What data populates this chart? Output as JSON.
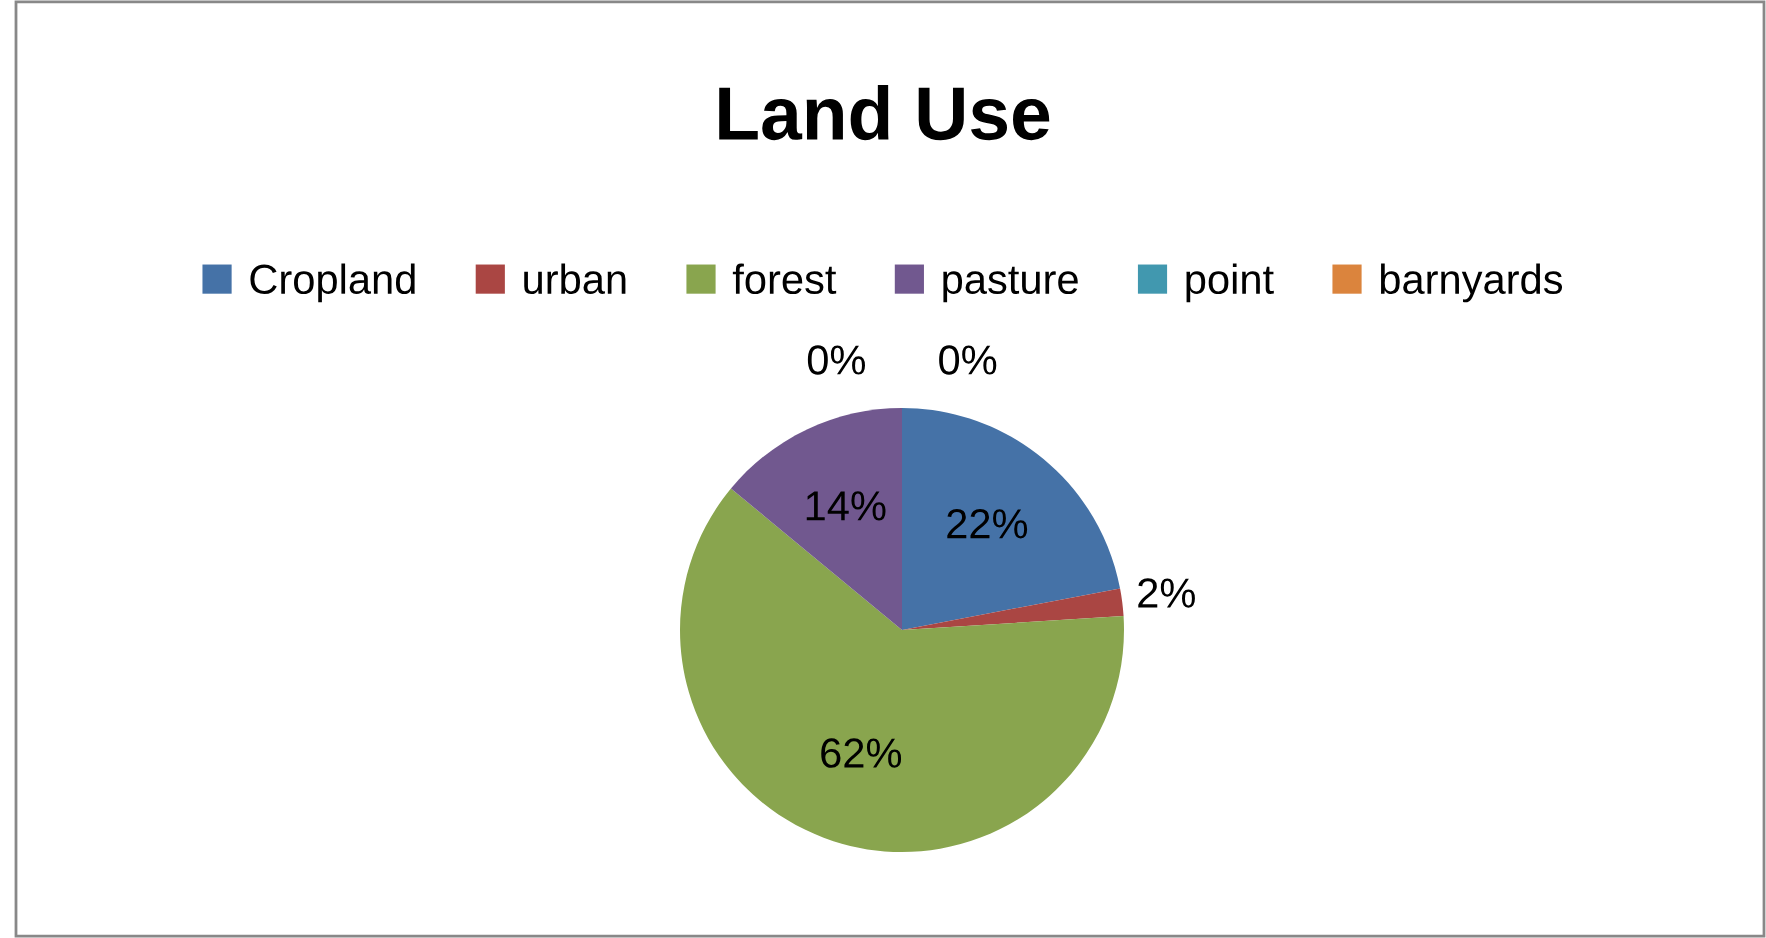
{
  "chart_data": {
    "type": "pie",
    "title": "Land Use",
    "categories": [
      "Cropland",
      "urban",
      "forest",
      "pasture",
      "point",
      "barnyards"
    ],
    "values": [
      22,
      2,
      62,
      14,
      0,
      0
    ],
    "colors": [
      "#4572a7",
      "#aa4643",
      "#89a54e",
      "#71588f",
      "#4198af",
      "#db843d"
    ],
    "value_labels": [
      "22%",
      "2%",
      "62%",
      "14%",
      "0%",
      "0%"
    ],
    "legend": "top"
  }
}
